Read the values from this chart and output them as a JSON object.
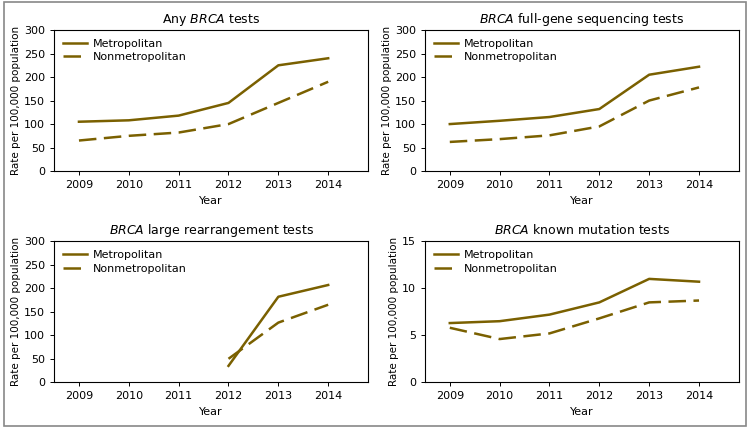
{
  "color": "#7a6000",
  "panels": [
    {
      "title_plain": "Any ",
      "title_italic": "BRCA",
      "title_rest": " tests",
      "ylim": [
        0,
        300
      ],
      "yticks": [
        0,
        50,
        100,
        150,
        200,
        250,
        300
      ],
      "metro": [
        105,
        108,
        118,
        145,
        225,
        240
      ],
      "nonmetro": [
        65,
        75,
        82,
        100,
        145,
        190
      ],
      "metro_years": [
        2009,
        2010,
        2011,
        2012,
        2013,
        2014
      ],
      "nonmetro_years": [
        2009,
        2010,
        2011,
        2012,
        2013,
        2014
      ]
    },
    {
      "title_plain": "",
      "title_italic": "BRCA",
      "title_rest": " full-gene sequencing tests",
      "ylim": [
        0,
        300
      ],
      "yticks": [
        0,
        50,
        100,
        150,
        200,
        250,
        300
      ],
      "metro": [
        100,
        107,
        115,
        132,
        205,
        222
      ],
      "nonmetro": [
        62,
        68,
        76,
        95,
        150,
        178
      ],
      "metro_years": [
        2009,
        2010,
        2011,
        2012,
        2013,
        2014
      ],
      "nonmetro_years": [
        2009,
        2010,
        2011,
        2012,
        2013,
        2014
      ]
    },
    {
      "title_plain": "",
      "title_italic": "BRCA",
      "title_rest": " large rearrangement tests",
      "ylim": [
        0,
        300
      ],
      "yticks": [
        0,
        50,
        100,
        150,
        200,
        250,
        300
      ],
      "metro": [
        35,
        182,
        207
      ],
      "nonmetro": [
        50,
        127,
        165
      ],
      "metro_years": [
        2012,
        2013,
        2014
      ],
      "nonmetro_years": [
        2012,
        2013,
        2014
      ]
    },
    {
      "title_plain": "",
      "title_italic": "BRCA",
      "title_rest": " known mutation tests",
      "ylim": [
        0,
        15
      ],
      "yticks": [
        0,
        5,
        10,
        15
      ],
      "metro": [
        6.3,
        6.5,
        7.2,
        8.5,
        11.0,
        10.7
      ],
      "nonmetro": [
        5.8,
        4.6,
        5.2,
        6.8,
        8.5,
        8.7
      ],
      "metro_years": [
        2009,
        2010,
        2011,
        2012,
        2013,
        2014
      ],
      "nonmetro_years": [
        2009,
        2010,
        2011,
        2012,
        2013,
        2014
      ]
    }
  ],
  "ylabel": "Rate per 100,000 population",
  "xlabel": "Year",
  "legend_metro": "Metropolitan",
  "legend_nonmetro": "Nonmetropolitan",
  "fig_facecolor": "#ffffff",
  "ax_facecolor": "#ffffff",
  "border_color": "#aaaaaa",
  "line_color": "#7a6000",
  "linewidth": 1.8,
  "title_fontsize": 9,
  "axis_fontsize": 8,
  "tick_fontsize": 8,
  "legend_fontsize": 8
}
